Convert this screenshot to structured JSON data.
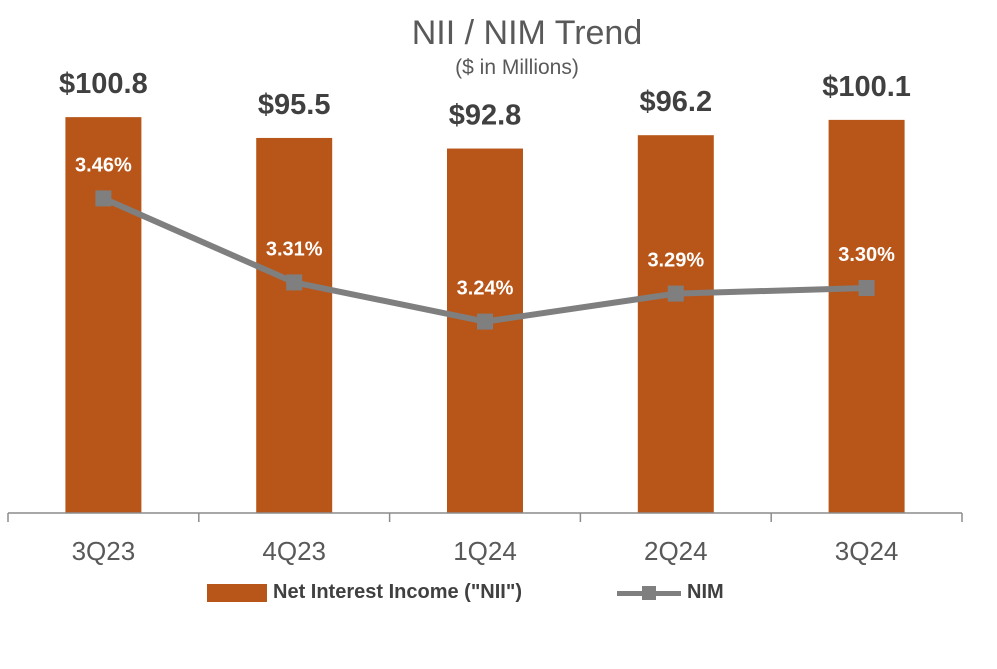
{
  "chart_data": {
    "type": "bar",
    "title": "NII / NIM Trend",
    "subtitle": "($ in Millions)",
    "categories": [
      "3Q23",
      "4Q23",
      "1Q24",
      "2Q24",
      "3Q24"
    ],
    "series": [
      {
        "name": "Net Interest Income (\"NII\")",
        "kind": "bar",
        "values": [
          100.8,
          95.5,
          92.8,
          96.2,
          100.1
        ],
        "labels": [
          "$100.8",
          "$95.5",
          "$92.8",
          "$96.2",
          "$100.1"
        ],
        "color": "#B8561A"
      },
      {
        "name": "NIM",
        "kind": "line",
        "marker": "square",
        "values": [
          3.46,
          3.31,
          3.24,
          3.29,
          3.3
        ],
        "labels": [
          "3.46%",
          "3.31%",
          "3.24%",
          "3.29%",
          "3.30%"
        ],
        "color": "#7F7F7F"
      }
    ],
    "ylim": [
      0,
      110
    ],
    "y2lim": [
      2.9,
      3.6
    ],
    "grid": false,
    "legend": "bottom"
  }
}
